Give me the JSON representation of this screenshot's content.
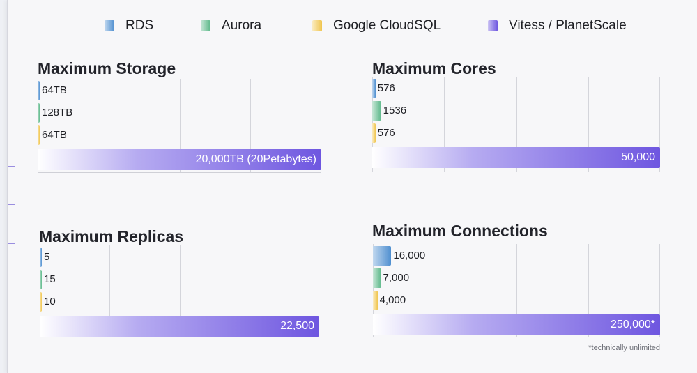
{
  "legend": [
    {
      "label": "RDS",
      "color": "#4f8fd0"
    },
    {
      "label": "Aurora",
      "color": "#5cb889"
    },
    {
      "label": "Google CloudSQL",
      "color": "#f0c54e"
    },
    {
      "label": "Vitess / PlanetScale",
      "color": "#6e56e0"
    }
  ],
  "footnote": "*technically unlimited",
  "chart_data": [
    {
      "type": "bar",
      "orientation": "horizontal",
      "title": "Maximum Storage",
      "categories": [
        "RDS",
        "Aurora",
        "Google CloudSQL",
        "Vitess / PlanetScale"
      ],
      "values": [
        64,
        128,
        64,
        20000
      ],
      "labels": [
        "64TB",
        "128TB",
        "64TB",
        "20,000TB (20Petabytes)"
      ],
      "unit": "TB",
      "xlim": [
        0,
        20000
      ],
      "grid": true
    },
    {
      "type": "bar",
      "orientation": "horizontal",
      "title": "Maximum Cores",
      "categories": [
        "RDS",
        "Aurora",
        "Google CloudSQL",
        "Vitess / PlanetScale"
      ],
      "values": [
        576,
        1536,
        576,
        50000
      ],
      "labels": [
        "576",
        "1536",
        "576",
        "50,000"
      ],
      "xlim": [
        0,
        50000
      ],
      "grid": true
    },
    {
      "type": "bar",
      "orientation": "horizontal",
      "title": "Maximum Replicas",
      "categories": [
        "RDS",
        "Aurora",
        "Google CloudSQL",
        "Vitess / PlanetScale"
      ],
      "values": [
        5,
        15,
        10,
        22500
      ],
      "labels": [
        "5",
        "15",
        "10",
        "22,500"
      ],
      "xlim": [
        0,
        22500
      ],
      "grid": true
    },
    {
      "type": "bar",
      "orientation": "horizontal",
      "title": "Maximum Connections",
      "categories": [
        "RDS",
        "Aurora",
        "Google CloudSQL",
        "Vitess / PlanetScale"
      ],
      "values": [
        16000,
        7000,
        4000,
        250000
      ],
      "labels": [
        "16,000",
        "7,000",
        "4,000",
        "250,000*"
      ],
      "xlim": [
        0,
        250000
      ],
      "grid": true
    }
  ]
}
